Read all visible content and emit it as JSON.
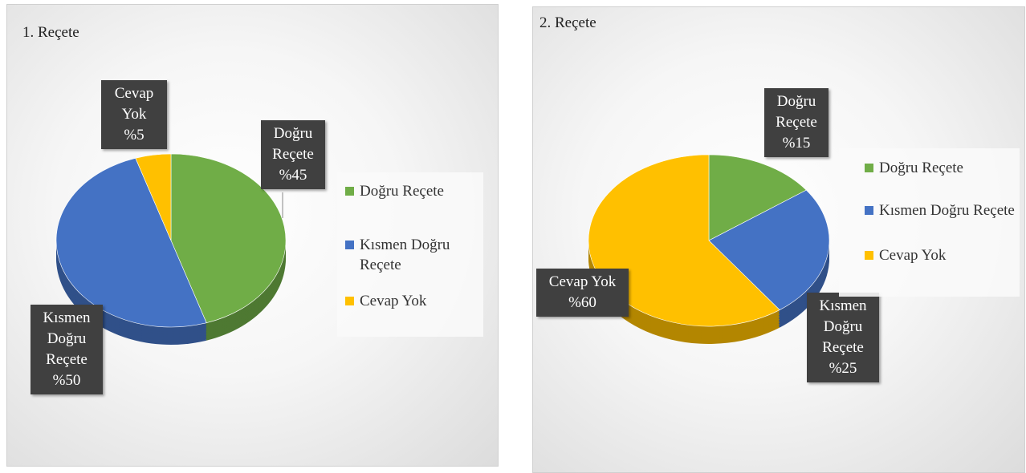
{
  "chart_data": [
    {
      "type": "pie",
      "title": "1. Reçete",
      "categories": [
        "Doğru Reçete",
        "Kısmen Doğru Reçete",
        "Cevap Yok"
      ],
      "values": [
        45,
        50,
        5
      ],
      "value_labels": [
        "%45",
        "%50",
        "%5"
      ],
      "colors": [
        "#70ad47",
        "#4472c4",
        "#ffc000"
      ],
      "legend": "right"
    },
    {
      "type": "pie",
      "title": "2. Reçete",
      "categories": [
        "Doğru Reçete",
        "Kısmen Doğru Reçete",
        "Cevap Yok"
      ],
      "values": [
        15,
        25,
        60
      ],
      "value_labels": [
        "%15",
        "%25",
        "%60"
      ],
      "colors": [
        "#70ad47",
        "#4472c4",
        "#ffc000"
      ],
      "legend": "right"
    }
  ]
}
